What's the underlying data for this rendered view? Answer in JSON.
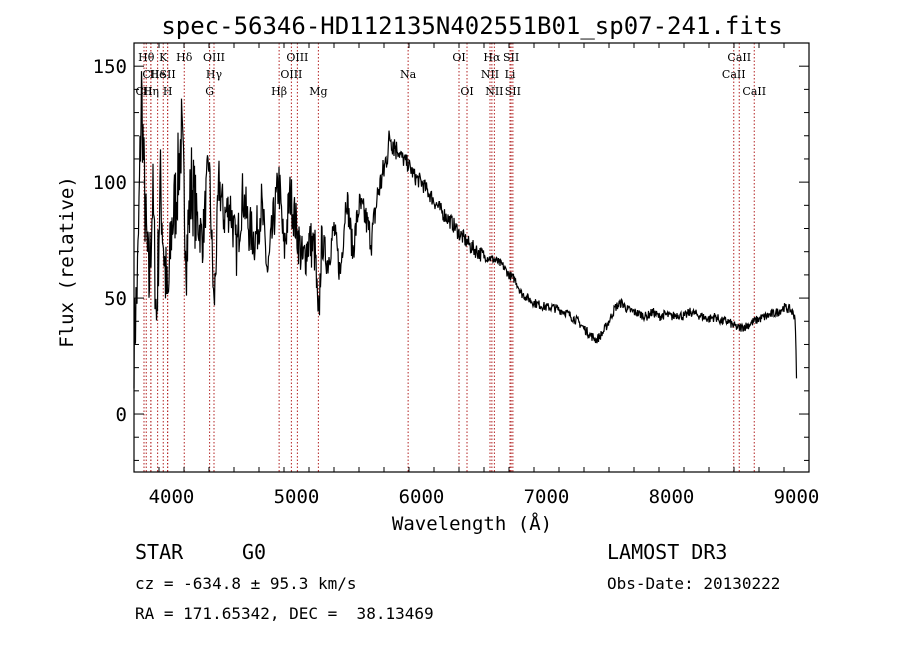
{
  "chart_data": {
    "type": "line",
    "title": "spec-56346-HD112135N402551B01_sp07-241.fits",
    "xlabel": "Wavelength (Å)",
    "ylabel": "Flux (relative)",
    "xlim": [
      3700,
      9100
    ],
    "ylim": [
      -25,
      160
    ],
    "xticks": [
      4000,
      5000,
      6000,
      7000,
      8000,
      9000
    ],
    "yticks": [
      0,
      50,
      100,
      150
    ],
    "series": [
      {
        "name": "flux",
        "color": "#000000",
        "x": [
          3700,
          3730,
          3760,
          3790,
          3820,
          3850,
          3880,
          3910,
          3940,
          3970,
          4000,
          4040,
          4080,
          4120,
          4160,
          4200,
          4250,
          4300,
          4340,
          4380,
          4420,
          4470,
          4520,
          4570,
          4620,
          4670,
          4720,
          4770,
          4820,
          4860,
          4900,
          4950,
          5000,
          5050,
          5100,
          5150,
          5175,
          5200,
          5250,
          5300,
          5350,
          5400,
          5450,
          5500,
          5550,
          5600,
          5650,
          5700,
          5750,
          5800,
          5850,
          5890,
          5950,
          6000,
          6050,
          6100,
          6150,
          6200,
          6250,
          6300,
          6350,
          6400,
          6450,
          6500,
          6563,
          6600,
          6650,
          6700,
          6750,
          6800,
          6850,
          6900,
          6950,
          7000,
          7050,
          7100,
          7150,
          7200,
          7250,
          7300,
          7350,
          7400,
          7450,
          7500,
          7550,
          7600,
          7650,
          7700,
          7750,
          7800,
          7850,
          7900,
          7950,
          8000,
          8050,
          8100,
          8150,
          8200,
          8250,
          8300,
          8350,
          8400,
          8450,
          8500,
          8542,
          8600,
          8662,
          8700,
          8750,
          8800,
          8850,
          8900,
          8950,
          8990,
          9000
        ],
        "values": [
          30,
          60,
          140,
          85,
          55,
          95,
          40,
          100,
          70,
          45,
          80,
          95,
          120,
          70,
          100,
          85,
          75,
          110,
          45,
          100,
          85,
          90,
          70,
          95,
          80,
          75,
          90,
          60,
          85,
          100,
          70,
          95,
          80,
          65,
          75,
          70,
          35,
          75,
          65,
          80,
          60,
          95,
          70,
          90,
          85,
          75,
          95,
          105,
          120,
          115,
          110,
          108,
          102,
          100,
          96,
          92,
          88,
          85,
          82,
          78,
          75,
          72,
          70,
          68,
          67,
          66,
          64,
          60,
          58,
          52,
          50,
          48,
          47,
          46,
          46,
          45,
          44,
          42,
          40,
          37,
          34,
          32,
          35,
          40,
          46,
          48,
          45,
          44,
          43,
          42,
          44,
          42,
          43,
          42,
          43,
          42,
          44,
          43,
          42,
          41,
          42,
          40,
          40,
          38,
          37,
          38,
          40,
          41,
          42,
          43,
          44,
          46,
          45,
          42,
          15
        ]
      }
    ],
    "lines": [
      {
        "label": "Hθ",
        "wl": 3798,
        "row": 0
      },
      {
        "label": "CII",
        "wl": 3835,
        "row": 1
      },
      {
        "label": "CII",
        "wl": 3780,
        "row": 2
      },
      {
        "label": "Hη",
        "wl": 3835,
        "row": 2
      },
      {
        "label": "He",
        "wl": 3889,
        "row": 1
      },
      {
        "label": "K",
        "wl": 3934,
        "row": 0
      },
      {
        "label": "SII",
        "wl": 3969,
        "row": 1
      },
      {
        "label": "H",
        "wl": 3969,
        "row": 2
      },
      {
        "label": "Hδ",
        "wl": 4102,
        "row": 0
      },
      {
        "label": "OIII",
        "wl": 4340,
        "row": 0
      },
      {
        "label": "Hγ",
        "wl": 4340,
        "row": 1
      },
      {
        "label": "G",
        "wl": 4305,
        "row": 2
      },
      {
        "label": "Hβ",
        "wl": 4861,
        "row": 2
      },
      {
        "label": "OIII",
        "wl": 5007,
        "row": 0
      },
      {
        "label": "OIII",
        "wl": 4959,
        "row": 1
      },
      {
        "label": "Mg",
        "wl": 5175,
        "row": 2
      },
      {
        "label": "Na",
        "wl": 5893,
        "row": 1
      },
      {
        "label": "OI",
        "wl": 6300,
        "row": 0
      },
      {
        "label": "OI",
        "wl": 6364,
        "row": 2
      },
      {
        "label": "Hα",
        "wl": 6563,
        "row": 0
      },
      {
        "label": "NII",
        "wl": 6548,
        "row": 1
      },
      {
        "label": "NII",
        "wl": 6583,
        "row": 2
      },
      {
        "label": "Li",
        "wl": 6708,
        "row": 1
      },
      {
        "label": "SII",
        "wl": 6717,
        "row": 0
      },
      {
        "label": "SII",
        "wl": 6731,
        "row": 2
      },
      {
        "label": "CaII",
        "wl": 8542,
        "row": 0
      },
      {
        "label": "CaII",
        "wl": 8498,
        "row": 1
      },
      {
        "label": "CaII",
        "wl": 8662,
        "row": 2
      }
    ]
  },
  "info": {
    "class_label": "STAR",
    "subclass": "G0",
    "survey": "LAMOST DR3",
    "cz": "cz = -634.8 ± 95.3 km/s",
    "obs_date": "Obs-Date: 20130222",
    "coords": "RA = 171.65342, DEC =  38.13469"
  }
}
